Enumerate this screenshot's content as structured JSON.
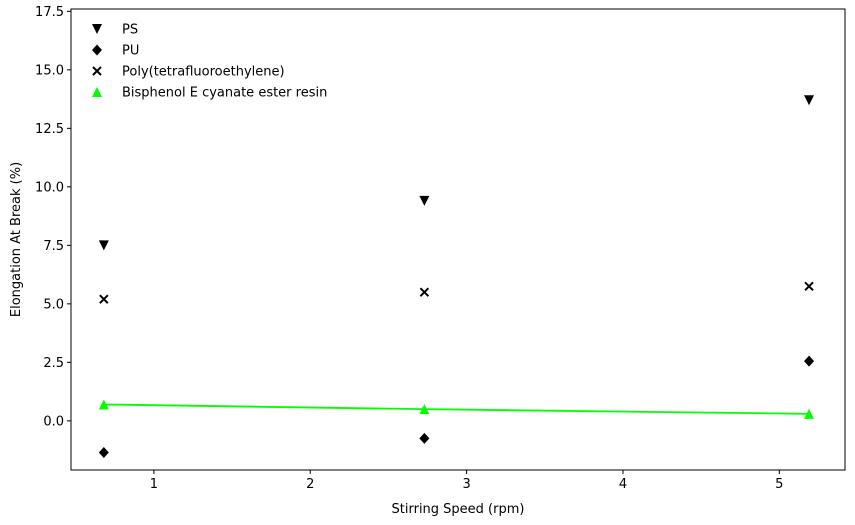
{
  "chart_data": {
    "type": "scatter",
    "title": "",
    "xlabel": "Stirring Speed (rpm)",
    "ylabel": "Elongation At Break (%)",
    "xlim": [
      0.47,
      5.42
    ],
    "ylim": [
      -2.1,
      17.6
    ],
    "xticks": [
      1,
      2,
      3,
      4,
      5
    ],
    "yticks": [
      0.0,
      2.5,
      5.0,
      7.5,
      10.0,
      12.5,
      15.0,
      17.5
    ],
    "xtick_labels": [
      "1",
      "2",
      "3",
      "4",
      "5"
    ],
    "ytick_labels": [
      "0.0",
      "2.5",
      "5.0",
      "7.5",
      "10.0",
      "12.5",
      "15.0",
      "17.5"
    ],
    "grid": false,
    "legend_position": "top-left",
    "series": [
      {
        "name": "PS",
        "marker": "triangle-down",
        "color": "#000000",
        "x": [
          0.68,
          2.73,
          5.19
        ],
        "y": [
          7.5,
          9.4,
          13.7
        ]
      },
      {
        "name": "PU",
        "marker": "diamond",
        "color": "#000000",
        "x": [
          0.68,
          2.73,
          5.19
        ],
        "y": [
          -1.35,
          -0.75,
          2.55
        ]
      },
      {
        "name": "Poly(tetrafluoroethylene)",
        "marker": "x",
        "color": "#000000",
        "x": [
          0.68,
          2.73,
          5.19
        ],
        "y": [
          5.2,
          5.5,
          5.75
        ]
      },
      {
        "name": "Bisphenol E cyanate ester resin",
        "marker": "triangle-up",
        "color": "#00ff00",
        "x": [
          0.68,
          2.73,
          5.19
        ],
        "y": [
          0.7,
          0.5,
          0.3
        ],
        "line": true
      }
    ]
  }
}
